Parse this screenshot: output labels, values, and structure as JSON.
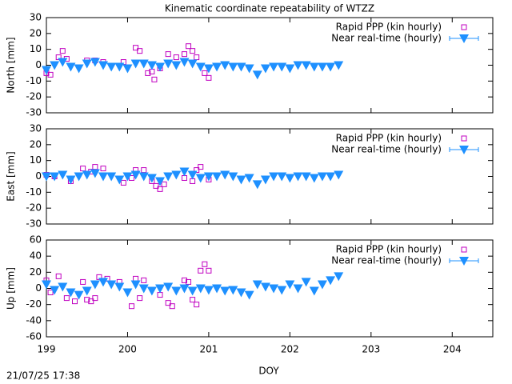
{
  "timestamp": "21/07/25 17:38",
  "chart_data": [
    {
      "type": "scatter",
      "title": "Kinematic coordinate repeatability of WTZZ",
      "ylabel": "North [mm]",
      "xlim": [
        199,
        204.5
      ],
      "ylim": [
        -30,
        30
      ],
      "yticks": [
        -30,
        -20,
        -10,
        0,
        10,
        20,
        30
      ],
      "series": [
        {
          "name": "Rapid PPP (kin hourly)",
          "color": "#c000c0",
          "marker": "square",
          "x": [
            199.0,
            199.05,
            199.15,
            199.2,
            199.25,
            199.5,
            199.6,
            199.7,
            199.95,
            200.1,
            200.15,
            200.25,
            200.3,
            200.33,
            200.4,
            200.5,
            200.6,
            200.7,
            200.75,
            200.8,
            200.85,
            200.95,
            201.0
          ],
          "values": [
            -5,
            -6,
            5,
            9,
            4,
            3,
            3,
            2,
            2,
            11,
            9,
            -5,
            -4,
            -9,
            -2,
            7,
            5,
            7,
            12,
            9,
            5,
            -5,
            -8
          ]
        },
        {
          "name": "Near real-time (hourly)",
          "color": "#1e90ff",
          "marker": "triangle-down",
          "x": [
            199.0,
            199.1,
            199.2,
            199.3,
            199.4,
            199.5,
            199.6,
            199.7,
            199.8,
            199.9,
            200.0,
            200.1,
            200.2,
            200.3,
            200.4,
            200.5,
            200.6,
            200.7,
            200.8,
            200.9,
            201.0,
            201.1,
            201.2,
            201.3,
            201.4,
            201.5,
            201.6,
            201.7,
            201.8,
            201.9,
            202.0,
            202.1,
            202.2,
            202.3,
            202.4,
            202.5,
            202.6
          ],
          "values": [
            -3,
            0,
            2,
            -1,
            -2,
            1,
            2,
            0,
            -1,
            -1,
            -2,
            1,
            1,
            0,
            -1,
            1,
            0,
            2,
            1,
            -1,
            -2,
            -1,
            0,
            -1,
            -1,
            -2,
            -6,
            -2,
            -1,
            -1,
            -2,
            0,
            0,
            -1,
            -1,
            -1,
            0
          ]
        }
      ]
    },
    {
      "type": "scatter",
      "ylabel": "East [mm]",
      "xlim": [
        199,
        204.5
      ],
      "ylim": [
        -30,
        30
      ],
      "yticks": [
        -30,
        -20,
        -10,
        0,
        10,
        20,
        30
      ],
      "series": [
        {
          "name": "Rapid PPP (kin hourly)",
          "color": "#c000c0",
          "marker": "square",
          "x": [
            199.0,
            199.1,
            199.3,
            199.45,
            199.55,
            199.6,
            199.7,
            199.95,
            200.05,
            200.1,
            200.2,
            200.3,
            200.35,
            200.4,
            200.45,
            200.7,
            200.8,
            200.85,
            200.9,
            201.0
          ],
          "values": [
            1,
            0,
            -3,
            5,
            3,
            6,
            5,
            -4,
            -1,
            4,
            4,
            -3,
            -6,
            -8,
            -5,
            -1,
            -3,
            4,
            6,
            -2
          ]
        },
        {
          "name": "Near real-time (hourly)",
          "color": "#1e90ff",
          "marker": "triangle-down",
          "x": [
            199.0,
            199.1,
            199.2,
            199.3,
            199.4,
            199.5,
            199.6,
            199.7,
            199.8,
            199.9,
            200.0,
            200.1,
            200.2,
            200.3,
            200.4,
            200.5,
            200.6,
            200.7,
            200.8,
            200.9,
            201.0,
            201.1,
            201.2,
            201.3,
            201.4,
            201.5,
            201.6,
            201.7,
            201.8,
            201.9,
            202.0,
            202.1,
            202.2,
            202.3,
            202.4,
            202.5,
            202.6
          ],
          "values": [
            0,
            0,
            1,
            -2,
            0,
            1,
            2,
            0,
            0,
            -2,
            0,
            1,
            0,
            -1,
            -3,
            0,
            1,
            3,
            1,
            -1,
            0,
            0,
            1,
            0,
            -2,
            -1,
            -5,
            -2,
            0,
            0,
            -1,
            0,
            0,
            -1,
            0,
            0,
            1
          ]
        }
      ]
    },
    {
      "type": "scatter",
      "ylabel": "Up [mm]",
      "xlabel": "DOY",
      "xlim": [
        199,
        204.5
      ],
      "xticks": [
        199,
        200,
        201,
        202,
        203,
        204
      ],
      "ylim": [
        -60,
        60
      ],
      "yticks": [
        -60,
        -40,
        -20,
        0,
        20,
        40,
        60
      ],
      "series": [
        {
          "name": "Rapid PPP (kin hourly)",
          "color": "#c000c0",
          "marker": "square",
          "x": [
            199.0,
            199.05,
            199.15,
            199.25,
            199.35,
            199.45,
            199.5,
            199.55,
            199.6,
            199.65,
            199.75,
            199.9,
            200.05,
            200.1,
            200.15,
            200.2,
            200.4,
            200.5,
            200.55,
            200.7,
            200.75,
            200.8,
            200.85,
            200.9,
            200.95,
            201.0
          ],
          "values": [
            10,
            -5,
            15,
            -12,
            -16,
            8,
            -14,
            -16,
            -12,
            14,
            12,
            8,
            -22,
            12,
            -12,
            10,
            -8,
            -18,
            -22,
            10,
            8,
            -14,
            -20,
            22,
            30,
            22
          ]
        },
        {
          "name": "Near real-time (hourly)",
          "color": "#1e90ff",
          "marker": "triangle-down",
          "x": [
            199.0,
            199.1,
            199.2,
            199.3,
            199.4,
            199.5,
            199.6,
            199.7,
            199.8,
            199.9,
            200.0,
            200.1,
            200.2,
            200.3,
            200.4,
            200.5,
            200.6,
            200.7,
            200.8,
            200.9,
            201.0,
            201.1,
            201.2,
            201.3,
            201.4,
            201.5,
            201.6,
            201.7,
            201.8,
            201.9,
            202.0,
            202.1,
            202.2,
            202.3,
            202.4,
            202.5,
            202.6
          ],
          "values": [
            5,
            -2,
            2,
            -5,
            -8,
            -3,
            5,
            8,
            5,
            2,
            -5,
            5,
            0,
            -3,
            0,
            2,
            -3,
            0,
            -3,
            0,
            -2,
            0,
            -3,
            -2,
            -5,
            -8,
            5,
            2,
            0,
            -2,
            5,
            0,
            8,
            -3,
            5,
            10,
            15
          ]
        }
      ]
    }
  ]
}
